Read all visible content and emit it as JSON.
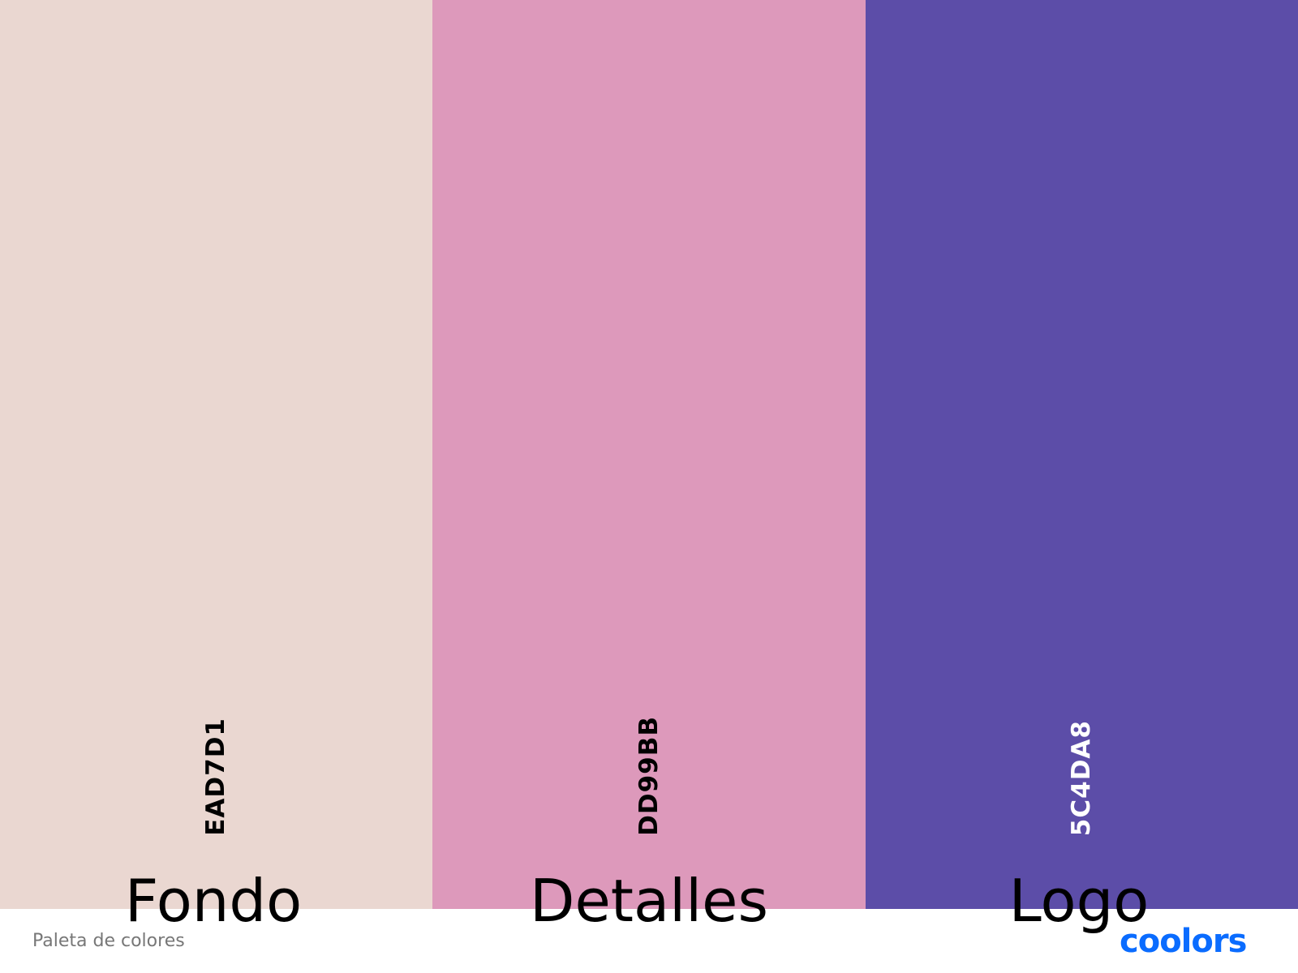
{
  "swatches": [
    {
      "hex": "EAD7D1",
      "name": "Fondo",
      "color": "#EAD7D1",
      "text_color": "#000000"
    },
    {
      "hex": "DD99BB",
      "name": "Detalles",
      "color": "#DD99BB",
      "text_color": "#000000"
    },
    {
      "hex": "5C4DA8",
      "name": "Logo",
      "color": "#5C4DA8",
      "text_color": "#ffffff"
    }
  ],
  "caption": "Paleta de colores",
  "brand": {
    "logo_text": "coolors",
    "color": "#0a6cff"
  }
}
